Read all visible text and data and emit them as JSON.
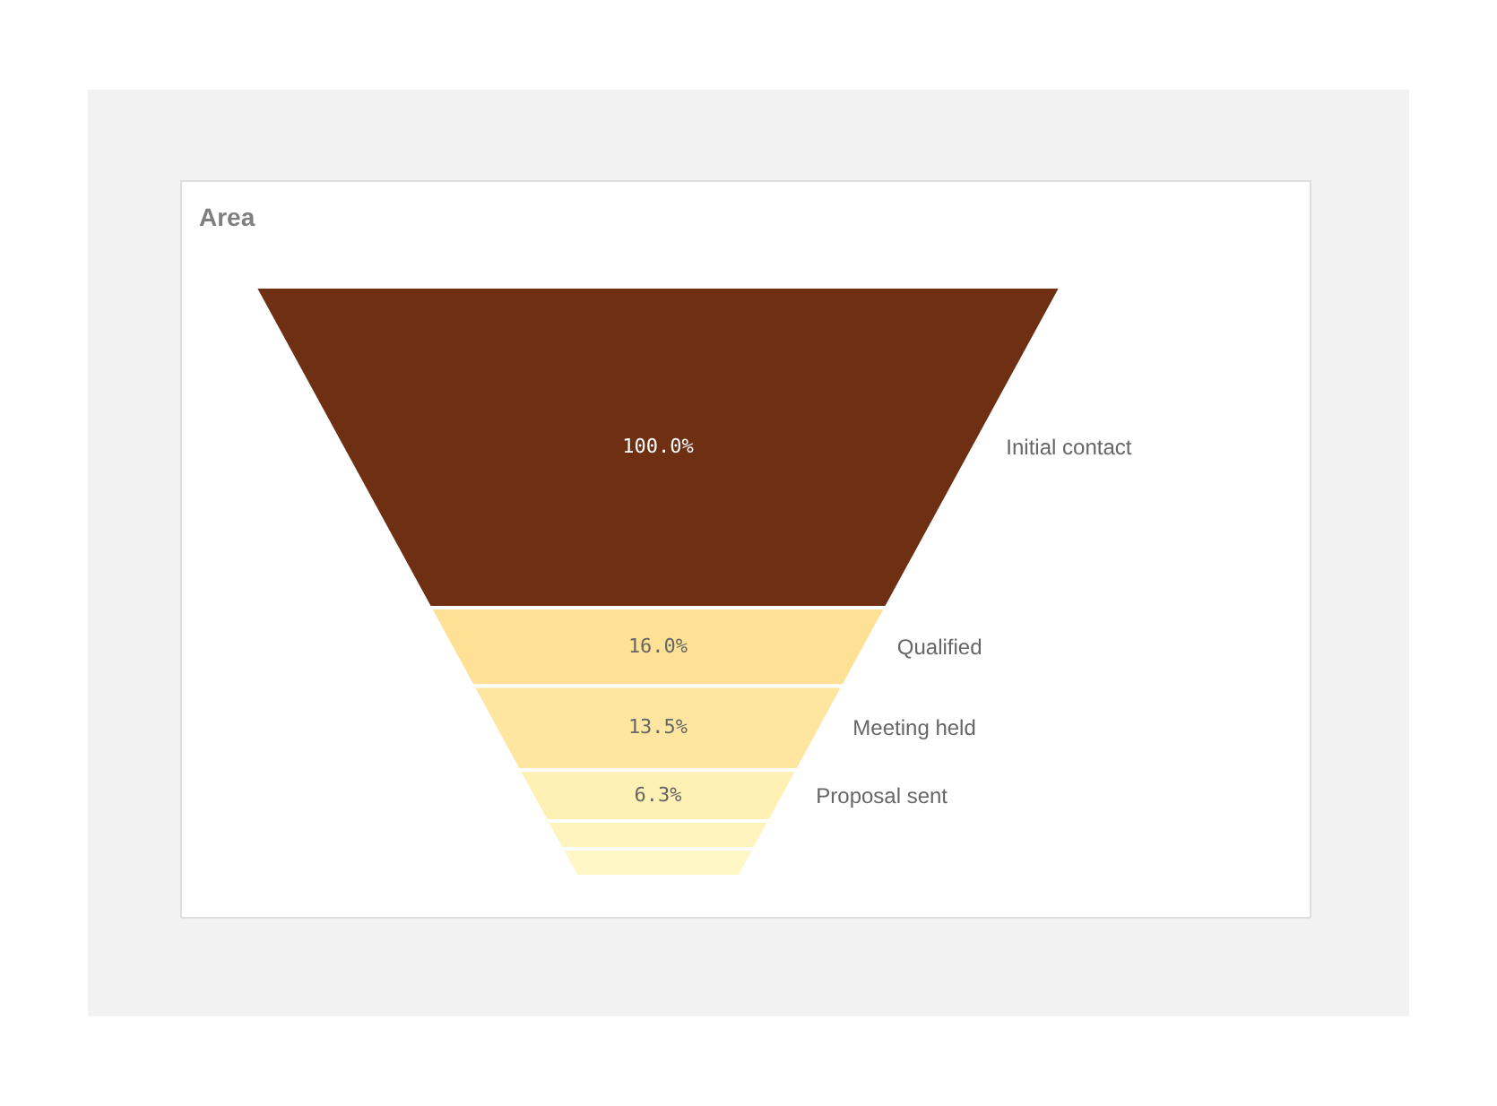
{
  "chart_data": {
    "type": "other",
    "title": "Area",
    "categories": [
      "Initial contact",
      "Qualified",
      "Meeting held",
      "Proposal sent",
      null,
      null
    ],
    "values": [
      100,
      16.0,
      13.5,
      6.3,
      null,
      null
    ],
    "value_labels": [
      "100.0%",
      "16.0%",
      "13.5%",
      "6.3%",
      null,
      null
    ],
    "colors": [
      "#6e2f13",
      "#fee194",
      "#fee6a0",
      "#fff0b4",
      "#fff4bd",
      "#fff7c6"
    ]
  }
}
